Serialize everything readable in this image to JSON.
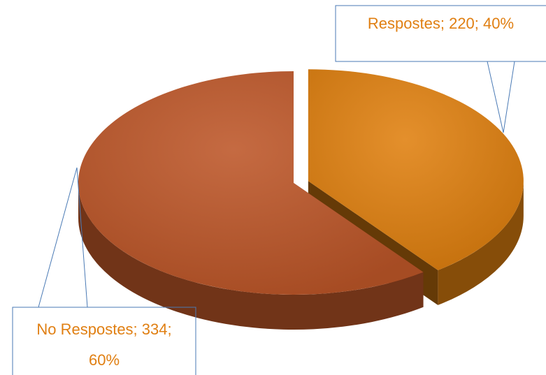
{
  "chart_data": {
    "type": "pie3d",
    "categories": [
      "Respostes",
      "No Respostes"
    ],
    "values": [
      220,
      334
    ],
    "value_labels": [
      "Respostes; 220; 40%",
      "No Respostes; 334; 60%"
    ],
    "colors": [
      "#e0800f",
      "#bd5628"
    ]
  }
}
